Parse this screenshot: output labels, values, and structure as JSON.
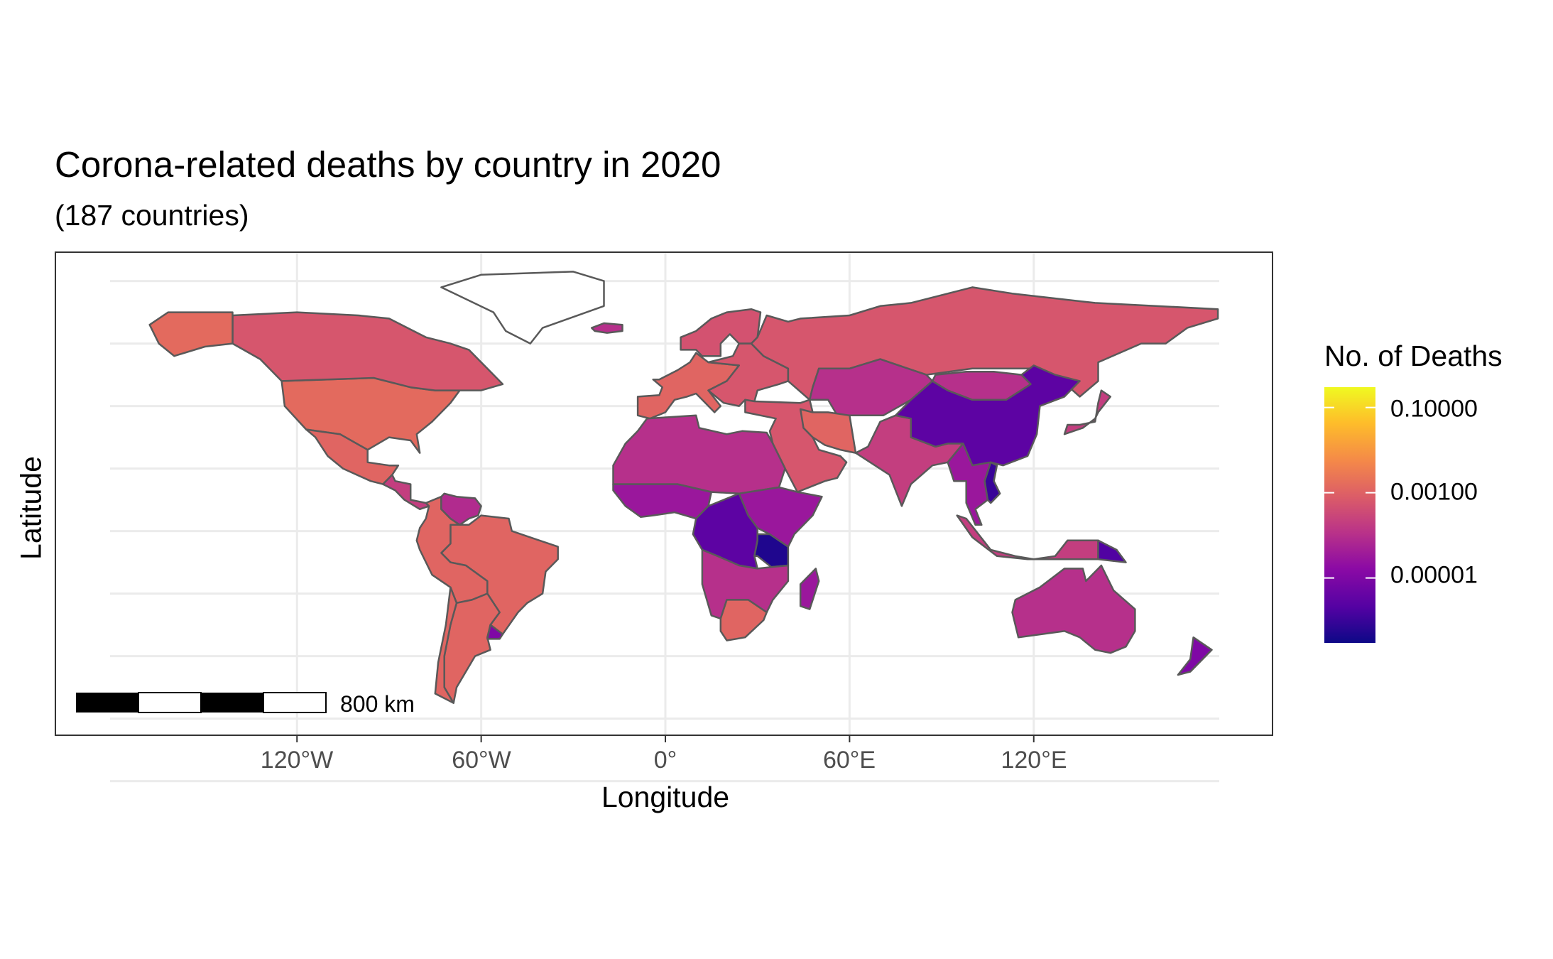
{
  "chart_data": {
    "type": "choropleth map",
    "title": "Corona-related deaths by country in 2020",
    "subtitle": "(187 countries)",
    "xlabel": "Longitude",
    "ylabel": "Latitude",
    "x_ticks": [
      "120°W",
      "60°W",
      "0°",
      "60°E",
      "120°E"
    ],
    "x_tick_values": [
      -120,
      -60,
      0,
      60,
      120
    ],
    "grid": true,
    "legend": {
      "title": "No. of Deaths",
      "position": "right",
      "scale": "log10",
      "palette": "plasma",
      "labels": [
        "0.10000",
        "0.00100",
        "0.00001"
      ],
      "label_values": [
        0.1,
        0.001,
        1e-05
      ],
      "range": [
        3e-07,
        0.3
      ]
    },
    "scale_bar": {
      "label": "800 km"
    },
    "regions": [
      {
        "name": "United States",
        "value": 0.0015
      },
      {
        "name": "Canada",
        "value": 0.0006
      },
      {
        "name": "Alaska",
        "value": 0.0015
      },
      {
        "name": "Greenland",
        "value": null
      },
      {
        "name": "Mexico",
        "value": 0.0012
      },
      {
        "name": "Central America",
        "value": 0.0002
      },
      {
        "name": "Brazil",
        "value": 0.0012
      },
      {
        "name": "Andean South America",
        "value": 0.0012
      },
      {
        "name": "Argentina",
        "value": 0.0012
      },
      {
        "name": "Chile",
        "value": 0.0012
      },
      {
        "name": "Uruguay",
        "value": 1e-05
      },
      {
        "name": "Venezuela",
        "value": 8e-05
      },
      {
        "name": "Western Europe",
        "value": 0.0012
      },
      {
        "name": "Scandinavia",
        "value": 0.0005
      },
      {
        "name": "Eastern Europe",
        "value": 0.0006
      },
      {
        "name": "Russia",
        "value": 0.0006
      },
      {
        "name": "Central Asia",
        "value": 0.0001
      },
      {
        "name": "Middle East",
        "value": 0.0006
      },
      {
        "name": "Iran",
        "value": 0.0012
      },
      {
        "name": "North Africa",
        "value": 0.0001
      },
      {
        "name": "West Africa",
        "value": 3e-05
      },
      {
        "name": "Central Africa",
        "value": 3e-06
      },
      {
        "name": "Tanzania",
        "value": 5e-07
      },
      {
        "name": "East Africa",
        "value": 3e-05
      },
      {
        "name": "Southern Africa",
        "value": 0.0001
      },
      {
        "name": "South Africa",
        "value": 0.0012
      },
      {
        "name": "Madagascar",
        "value": 3e-05
      },
      {
        "name": "India",
        "value": 0.0002
      },
      {
        "name": "China",
        "value": 3e-06
      },
      {
        "name": "Mongolia",
        "value": 0.0001
      },
      {
        "name": "Southeast Asia",
        "value": 3e-05
      },
      {
        "name": "Vietnam",
        "value": 1e-06
      },
      {
        "name": "Indonesia",
        "value": 0.0002
      },
      {
        "name": "Papua New Guinea",
        "value": 2e-06
      },
      {
        "name": "Australia",
        "value": 0.0001
      },
      {
        "name": "New Zealand",
        "value": 1e-05
      },
      {
        "name": "Japan",
        "value": 0.0002
      },
      {
        "name": "Iceland",
        "value": 0.0001
      }
    ]
  }
}
